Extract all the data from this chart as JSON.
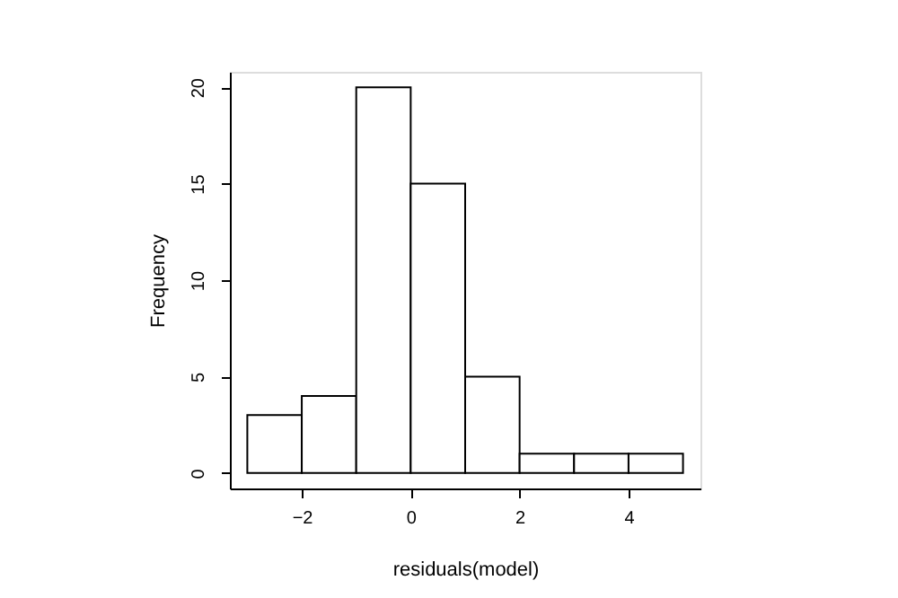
{
  "chart_data": {
    "type": "histogram",
    "xlabel": "residuals(model)",
    "ylabel": "Frequency",
    "bins": [
      -3,
      -2,
      -1,
      0,
      1,
      2,
      3,
      4,
      5
    ],
    "values": [
      3,
      4,
      20,
      15,
      5,
      1,
      1,
      1
    ],
    "color": "#ffffff",
    "xlim": [
      -3.32,
      5.32
    ],
    "xticks": [
      -2,
      0,
      2,
      4
    ],
    "ylim": [
      -0.8,
      20.8
    ],
    "yticks": [
      0,
      5,
      10,
      15,
      20
    ],
    "grid": false
  }
}
